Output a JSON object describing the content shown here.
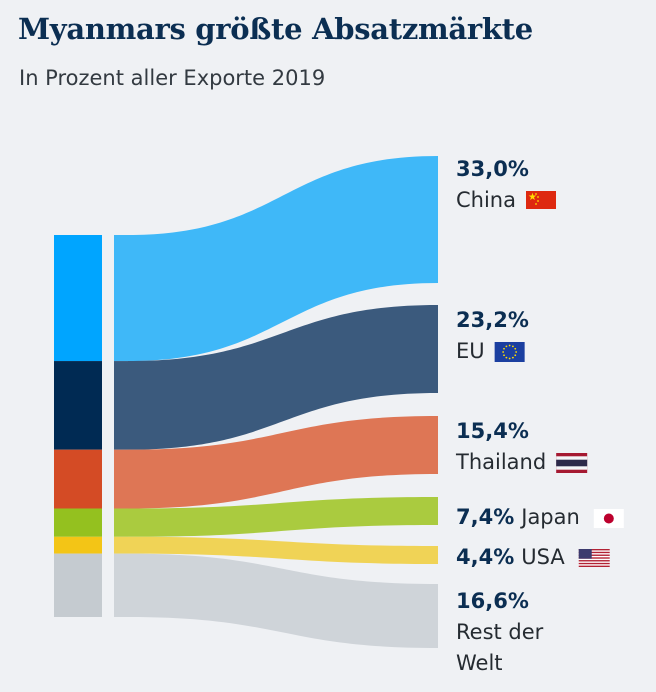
{
  "title": "Myanmars größte Absatzmärkte",
  "subtitle": "In Prozent aller Exporte 2019",
  "chart_data": {
    "type": "sankey",
    "unit": "%",
    "series": [
      {
        "label": "33,0%",
        "name": "China",
        "value": 33.0,
        "color": "#3fb8f8",
        "bar_color": "#00a5ff",
        "flag": "flag-china-icon"
      },
      {
        "label": "23,2%",
        "name": "EU",
        "value": 23.2,
        "color": "#3b5a7d",
        "bar_color": "#002a53",
        "flag": "flag-eu-icon"
      },
      {
        "label": "15,4%",
        "name": "Thailand",
        "value": 15.4,
        "color": "#de7655",
        "bar_color": "#d44b25",
        "flag": "flag-thailand-icon"
      },
      {
        "label": "7,4%",
        "name": "Japan",
        "value": 7.4,
        "color": "#aacb3f",
        "bar_color": "#94c11f",
        "flag": "flag-japan-icon"
      },
      {
        "label": "4,4%",
        "name": "USA",
        "value": 4.4,
        "color": "#f0d356",
        "bar_color": "#f3c516",
        "flag": "flag-usa-icon"
      },
      {
        "label": "16,6%",
        "name": "Rest der Welt",
        "value": 16.6,
        "color": "#cfd4d9",
        "bar_color": "#c5cbd0",
        "flag": ""
      }
    ]
  }
}
